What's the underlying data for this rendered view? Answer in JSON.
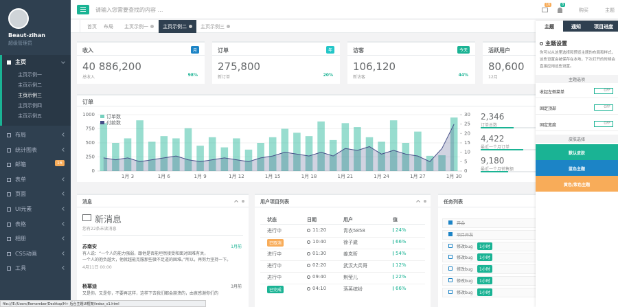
{
  "sidebar": {
    "user_name": "Beaut-zihan",
    "user_role": "超级管理员",
    "menu": [
      {
        "label": "主页",
        "children": [
          "主页示例一",
          "主页示例二",
          "主页示例三",
          "主页示例四",
          "主页示例五"
        ]
      },
      {
        "label": "布局"
      },
      {
        "label": "统计图表"
      },
      {
        "label": "邮箱",
        "badge": "16"
      },
      {
        "label": "表单"
      },
      {
        "label": "页面"
      },
      {
        "label": "UI元素"
      },
      {
        "label": "表格"
      },
      {
        "label": "相册"
      },
      {
        "label": "CSS动画"
      },
      {
        "label": "工具"
      }
    ]
  },
  "topbar": {
    "search_placeholder": "请输入您需要查找的内容 …",
    "mail_badge": "16",
    "bell_badge": "8",
    "links": [
      "购买",
      "主题"
    ]
  },
  "tabs": [
    "首页",
    "布局",
    "主页示例一",
    "主页示例二",
    "主页示例三"
  ],
  "stats": [
    {
      "title": "收入",
      "badge": "月",
      "badge_color": "#1c84c6",
      "value": "40 886,200",
      "sub": "总收入",
      "change": "98%"
    },
    {
      "title": "订单",
      "badge": "年",
      "badge_color": "#23c6c8",
      "value": "275,800",
      "sub": "新订单",
      "change": "20%"
    },
    {
      "title": "访客",
      "badge": "今天",
      "badge_color": "#1ab394",
      "value": "106,120",
      "sub": "新访客",
      "change": "44%"
    },
    {
      "title": "活跃用户",
      "value": "80,600",
      "sub": "12月"
    }
  ],
  "orders_panel": {
    "title": "订单",
    "totals": [
      {
        "value": "2,346",
        "label": "订单总数"
      },
      {
        "value": "4,422",
        "label": "最近一个月订单"
      },
      {
        "value": "9,180",
        "label": "最近一个月销售额"
      }
    ]
  },
  "chart_data": {
    "type": "bar",
    "categories": [
      null,
      null,
      "1月 3",
      null,
      null,
      "1月 6",
      null,
      null,
      "1月 9",
      null,
      null,
      "1月 12",
      null,
      null,
      "1月 15",
      null,
      null,
      "1月 18",
      null,
      null,
      "1月 21",
      null,
      null,
      "1月 24",
      null,
      null,
      "1月 27",
      null,
      null,
      "1月 30"
    ],
    "series": [
      {
        "name": "订单数",
        "color": "#1ab394",
        "values": [
          850,
          500,
          580,
          900,
          520,
          620,
          580,
          760,
          450,
          600,
          420,
          580,
          380,
          500,
          600,
          750,
          680,
          620,
          880,
          550,
          850,
          780,
          600,
          520,
          900,
          500,
          700,
          270,
          280,
          950
        ]
      },
      {
        "name": "付款数",
        "color": "#464f88",
        "type": "line",
        "axis": "y2",
        "values": [
          7,
          6,
          7,
          5,
          6,
          7,
          8,
          6,
          5,
          6,
          7,
          6,
          5,
          7,
          8,
          10,
          9,
          8,
          10,
          8,
          12,
          11,
          13,
          9,
          11,
          9,
          8,
          5,
          12,
          25
        ]
      }
    ],
    "ylim": [
      0,
      1000
    ],
    "yticks": [
      0,
      250,
      500,
      750,
      1000
    ],
    "y2lim": [
      0,
      30
    ],
    "y2ticks": [
      0,
      5,
      10,
      15,
      20,
      25,
      30
    ],
    "legend": "top-left"
  },
  "messages": {
    "title": "消息",
    "heading": "新消息",
    "subheading": "您有22条未读消息",
    "items": [
      {
        "name": "苏南安",
        "time": "1月前",
        "text": "有人说：“一个人的能力强弱，跟他是否能坦然接受和面对困难有关，",
        "text2": "一个人的抱负越大，他就越能克服那些微不足道的困难。”所以，再努力坚持一下。",
        "date": "4月11日 00:00"
      },
      {
        "name": "杨幂迪",
        "time": "3月前",
        "text": "又是你，又是你，不要再这样，这样下去我们都会崩溃的，由衷感谢你们的"
      }
    ]
  },
  "projects": {
    "title": "用户项目列表",
    "columns": [
      "状态",
      "日期",
      "用户",
      "值"
    ],
    "rows": [
      {
        "status": "进行中",
        "date": "11:20",
        "user": "青衣5858",
        "value": "24%"
      },
      {
        "status": "已取消",
        "badge_color": "#f8ac59",
        "date": "10:40",
        "user": "徐子崴",
        "value": "66%"
      },
      {
        "status": "进行中",
        "date": "01:30",
        "user": "姜岚昕",
        "value": "54%"
      },
      {
        "status": "进行中",
        "date": "02:20",
        "user": "武汉大兵哥",
        "value": "12%"
      },
      {
        "status": "进行中",
        "date": "09:40",
        "user": "荆莹儿",
        "value": "22%"
      },
      {
        "status": "已完成",
        "badge_color": "#1ab394",
        "date": "04:10",
        "user": "落英缤纷",
        "value": "66%"
      }
    ]
  },
  "tasks": {
    "title": "任务列表",
    "items": [
      {
        "label": "开会",
        "done": true
      },
      {
        "label": "项目开发",
        "done": true
      },
      {
        "label": "修改bug",
        "done": false,
        "badge": "1小时"
      },
      {
        "label": "修改bug",
        "done": false,
        "badge": "1小时"
      },
      {
        "label": "修改bug",
        "done": false,
        "badge": "1小时"
      },
      {
        "label": "修改bug",
        "done": false,
        "badge": "1小时"
      },
      {
        "label": "修改bug",
        "done": false,
        "badge": "1小时"
      }
    ]
  },
  "right_panel": {
    "tabs": [
      "主题",
      "通知",
      "项目进度"
    ],
    "heading": "主题设置",
    "description": [
      "你可以从这里选择和预览主题的布局和样式，",
      "这些设置会被保存在本地，下次打开的时候会",
      "直接应用这些设置。"
    ],
    "options_title": "主题选项",
    "options": [
      {
        "label": "收起左侧菜单",
        "state": "OFF"
      },
      {
        "label": "固定顶部",
        "state": "OFF"
      },
      {
        "label": "固定宽度",
        "state": "OFF"
      }
    ],
    "skins_title": "皮肤选择",
    "skins": [
      {
        "label": "默认皮肤",
        "color": "#1ab394"
      },
      {
        "label": "蓝色主题",
        "color": "#1c84c6"
      },
      {
        "label": "黄色/紫色主题",
        "color": "#f8ac59"
      }
    ]
  },
  "status_bar": "file:///E:/Users/Remember/Desktop/H+ 后台主题UI框架/index_v1.html"
}
